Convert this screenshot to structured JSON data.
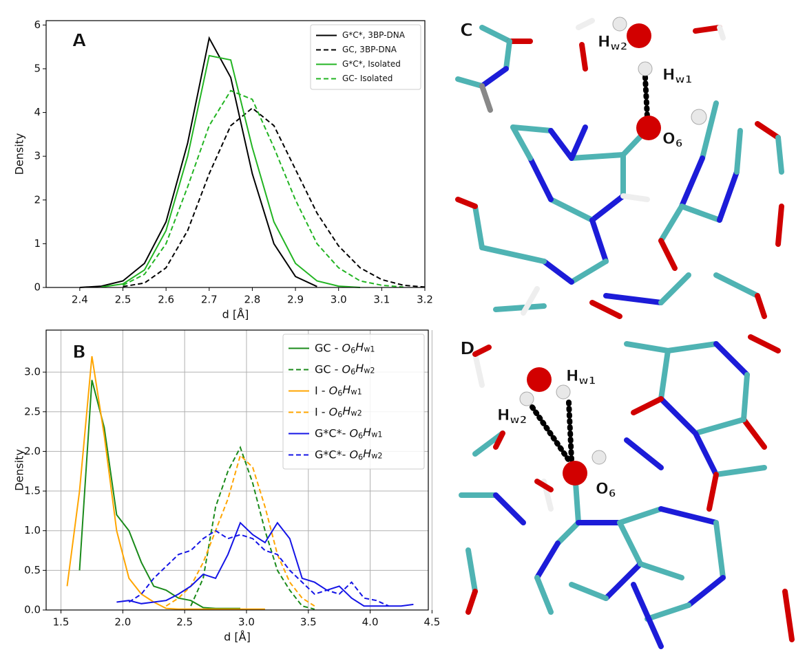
{
  "chart_data": [
    {
      "type": "line",
      "label": "A",
      "xlabel": "d [Å]",
      "ylabel": "Density",
      "x": [
        2.4,
        2.45,
        2.5,
        2.55,
        2.6,
        2.65,
        2.7,
        2.75,
        2.8,
        2.85,
        2.9,
        2.95,
        3.0,
        3.05,
        3.1,
        3.15,
        3.2
      ],
      "series": [
        {
          "name": "G*C*, 3BP-DNA",
          "color": "#000000",
          "dashed": false,
          "values": [
            0,
            0.03,
            0.15,
            0.55,
            1.5,
            3.3,
            5.7,
            4.8,
            2.6,
            1.0,
            0.25,
            0.02,
            null,
            null,
            null,
            null,
            null
          ]
        },
        {
          "name": "GC, 3BP-DNA",
          "color": "#000000",
          "dashed": true,
          "values": [
            null,
            null,
            0.02,
            0.1,
            0.45,
            1.3,
            2.6,
            3.7,
            4.1,
            3.7,
            2.7,
            1.7,
            0.95,
            0.45,
            0.18,
            0.05,
            0.01
          ]
        },
        {
          "name": "G*C*, Isolated",
          "color": "#22b422",
          "dashed": false,
          "values": [
            null,
            0.01,
            0.08,
            0.4,
            1.3,
            3.0,
            5.3,
            5.2,
            3.2,
            1.5,
            0.55,
            0.15,
            0.03,
            0,
            null,
            null,
            null
          ]
        },
        {
          "name": "GC- Isolated",
          "color": "#22b422",
          "dashed": true,
          "values": [
            null,
            null,
            0.05,
            0.3,
            1.0,
            2.3,
            3.7,
            4.5,
            4.3,
            3.2,
            2.0,
            1.0,
            0.45,
            0.15,
            0.05,
            0.01,
            null
          ]
        }
      ],
      "xlim": [
        2.322,
        3.2
      ],
      "ylim": [
        0,
        6.1
      ],
      "xticks": [
        2.4,
        2.5,
        2.6,
        2.7,
        2.8,
        2.9,
        {
          "value": 3.0,
          "label": "3.0"
        },
        3.1,
        3.2
      ],
      "yticks": [
        0,
        1,
        2,
        3,
        4,
        5,
        6
      ],
      "grid": false,
      "legend": "upper right"
    },
    {
      "type": "line",
      "label": "B",
      "xlabel": "d [Å]",
      "ylabel": "Density",
      "x": [
        1.55,
        1.65,
        1.75,
        1.85,
        1.95,
        2.05,
        2.15,
        2.25,
        2.35,
        2.45,
        2.55,
        2.65,
        2.75,
        2.85,
        2.95,
        3.05,
        3.15,
        3.25,
        3.35,
        3.45,
        3.55,
        3.65,
        3.75,
        3.85,
        3.95,
        4.05,
        4.15,
        4.25,
        4.35
      ],
      "series": [
        {
          "name": "GC - O6Hw1",
          "color": "#1a8a1a",
          "dashed": false,
          "values": [
            null,
            0.5,
            2.9,
            2.3,
            1.2,
            1.0,
            0.6,
            0.3,
            0.25,
            0.15,
            0.12,
            0.03,
            0.02,
            0.02,
            0.02,
            null,
            null,
            null,
            null,
            null,
            null,
            null,
            null,
            null,
            null,
            null,
            null,
            null,
            null
          ]
        },
        {
          "name": "GC - O6Hw2",
          "color": "#1a8a1a",
          "dashed": true,
          "values": [
            null,
            null,
            null,
            null,
            null,
            null,
            null,
            null,
            null,
            null,
            0.05,
            0.4,
            1.3,
            1.75,
            2.05,
            1.6,
            1.0,
            0.5,
            0.25,
            0.05,
            0.01,
            null,
            null,
            null,
            null,
            null,
            null,
            null,
            null
          ]
        },
        {
          "name": "I - O6Hw1",
          "color": "#ffa500",
          "dashed": false,
          "values": [
            0.3,
            1.5,
            3.2,
            2.2,
            1.0,
            0.4,
            0.2,
            0.1,
            0.02,
            0.01,
            0.01,
            0.01,
            0.01,
            0.01,
            0.01,
            0.01,
            0.01,
            null,
            null,
            null,
            null,
            null,
            null,
            null,
            null,
            null,
            null,
            null,
            null
          ]
        },
        {
          "name": "I - O6Hw2",
          "color": "#ffa500",
          "dashed": true,
          "values": [
            null,
            null,
            null,
            null,
            null,
            null,
            null,
            null,
            0.05,
            0.15,
            0.3,
            0.6,
            1.0,
            1.4,
            1.95,
            1.8,
            1.3,
            0.7,
            0.35,
            0.15,
            0.05,
            null,
            null,
            null,
            null,
            null,
            null,
            null,
            null
          ]
        },
        {
          "name": "G*C*- O6Hw1",
          "color": "#1414e6",
          "dashed": false,
          "values": [
            null,
            null,
            null,
            null,
            0.1,
            0.12,
            0.08,
            0.1,
            0.12,
            0.2,
            0.3,
            0.45,
            0.4,
            0.7,
            1.1,
            0.95,
            0.85,
            1.1,
            0.9,
            0.4,
            0.35,
            0.25,
            0.3,
            0.15,
            0.05,
            0.05,
            0.05,
            0.05,
            0.07
          ]
        },
        {
          "name": "G*C*- O6Hw2",
          "color": "#1414e6",
          "dashed": true,
          "values": [
            null,
            null,
            null,
            null,
            null,
            0.1,
            0.2,
            0.4,
            0.55,
            0.7,
            0.75,
            0.9,
            1.0,
            0.9,
            0.95,
            0.9,
            0.75,
            0.7,
            0.5,
            0.35,
            0.2,
            0.25,
            0.2,
            0.35,
            0.15,
            0.12,
            0.05,
            null,
            null
          ]
        }
      ],
      "xlim": [
        1.38,
        4.47
      ],
      "ylim": [
        0,
        3.53
      ],
      "xticks": [
        1.5,
        {
          "value": 2.0,
          "label": "2.0"
        },
        2.5,
        {
          "value": 3.0,
          "label": "3.0"
        },
        3.5,
        {
          "value": 4.0,
          "label": "4.0"
        },
        4.5
      ],
      "yticks": [
        {
          "value": 0,
          "label": "0.0"
        },
        0.5,
        {
          "value": 1,
          "label": "1.0"
        },
        1.5,
        {
          "value": 2,
          "label": "2.0"
        },
        2.5,
        {
          "value": 3,
          "label": "3.0"
        }
      ],
      "grid": true,
      "legend": "upper right"
    }
  ],
  "images": [
    {
      "label": "C",
      "atoms": [
        "Hw2",
        "Hw1",
        "O6"
      ]
    },
    {
      "label": "D",
      "atoms": [
        "Hw1",
        "Hw2",
        "O6"
      ]
    }
  ]
}
